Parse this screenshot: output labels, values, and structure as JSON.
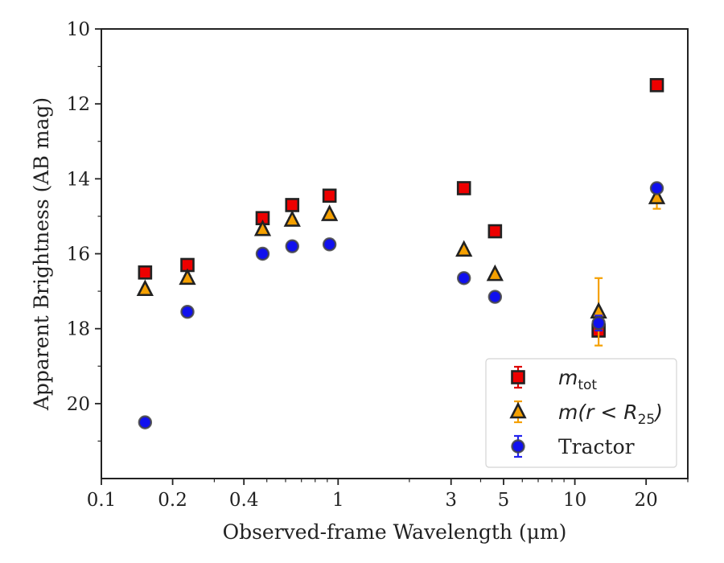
{
  "chart_data": {
    "type": "scatter",
    "xlabel": "Observed-frame Wavelength (μm)",
    "ylabel": "Apparent Brightness (AB mag)",
    "xscale": "log",
    "xlim": [
      0.1,
      30
    ],
    "ylim": [
      22,
      10
    ],
    "y_inverted": true,
    "x_ticks": [
      {
        "value": 0.1,
        "label": "0.1"
      },
      {
        "value": 0.2,
        "label": "0.2"
      },
      {
        "value": 0.4,
        "label": "0.4"
      },
      {
        "value": 1,
        "label": "1"
      },
      {
        "value": 3,
        "label": "3"
      },
      {
        "value": 5,
        "label": "5"
      },
      {
        "value": 10,
        "label": "10"
      },
      {
        "value": 20,
        "label": "20"
      }
    ],
    "y_ticks": [
      {
        "value": 10,
        "label": "10"
      },
      {
        "value": 12,
        "label": "12"
      },
      {
        "value": 14,
        "label": "14"
      },
      {
        "value": 16,
        "label": "16"
      },
      {
        "value": 18,
        "label": "18"
      },
      {
        "value": 20,
        "label": "20"
      }
    ],
    "grid": false,
    "legend_position": "bottom-right",
    "series": [
      {
        "name": "m_tot",
        "label_main": "m",
        "label_sub": "tot",
        "marker": "square",
        "fill": "#ee0000",
        "edge": "#222222",
        "errcolor": "#dd0000",
        "points": [
          {
            "x": 0.153,
            "y": 16.5,
            "err": 0.05
          },
          {
            "x": 0.231,
            "y": 16.3,
            "err": 0.05
          },
          {
            "x": 0.48,
            "y": 15.05,
            "err": 0.05
          },
          {
            "x": 0.64,
            "y": 14.7,
            "err": 0.05
          },
          {
            "x": 0.92,
            "y": 14.45,
            "err": 0.05
          },
          {
            "x": 3.4,
            "y": 14.25,
            "err": 0.05
          },
          {
            "x": 4.6,
            "y": 15.4,
            "err": 0.05
          },
          {
            "x": 12.6,
            "y": 18.05,
            "err": 0.1
          },
          {
            "x": 22.2,
            "y": 11.5,
            "err": 0.05
          }
        ]
      },
      {
        "name": "m(r < R25)",
        "label_main": "m(r < R",
        "label_sub": "25",
        "label_end": ")",
        "marker": "triangle",
        "fill": "#f5a000",
        "edge": "#222222",
        "errcolor": "#f5a000",
        "points": [
          {
            "x": 0.153,
            "y": 16.95,
            "err": 0.05
          },
          {
            "x": 0.231,
            "y": 16.65,
            "err": 0.05
          },
          {
            "x": 0.48,
            "y": 15.35,
            "err": 0.05
          },
          {
            "x": 0.64,
            "y": 15.1,
            "err": 0.05
          },
          {
            "x": 0.92,
            "y": 14.95,
            "err": 0.05
          },
          {
            "x": 3.4,
            "y": 15.9,
            "err": 0.05
          },
          {
            "x": 4.6,
            "y": 16.55,
            "err": 0.05
          },
          {
            "x": 12.6,
            "y": 17.55,
            "err": 0.9
          },
          {
            "x": 22.2,
            "y": 14.5,
            "err": 0.3
          }
        ]
      },
      {
        "name": "Tractor",
        "label_main": "Tractor",
        "marker": "circle",
        "fill": "#1010ee",
        "edge": "#444444",
        "errcolor": "#2222ee",
        "points": [
          {
            "x": 0.153,
            "y": 20.5,
            "err": 0.05
          },
          {
            "x": 0.231,
            "y": 17.55,
            "err": 0.05
          },
          {
            "x": 0.48,
            "y": 16.0,
            "err": 0.05
          },
          {
            "x": 0.64,
            "y": 15.8,
            "err": 0.05
          },
          {
            "x": 0.92,
            "y": 15.75,
            "err": 0.05
          },
          {
            "x": 3.4,
            "y": 16.65,
            "err": 0.05
          },
          {
            "x": 4.6,
            "y": 17.15,
            "err": 0.05
          },
          {
            "x": 12.6,
            "y": 17.85,
            "err": 0.2
          },
          {
            "x": 22.2,
            "y": 14.25,
            "err": 0.05
          }
        ]
      }
    ]
  }
}
